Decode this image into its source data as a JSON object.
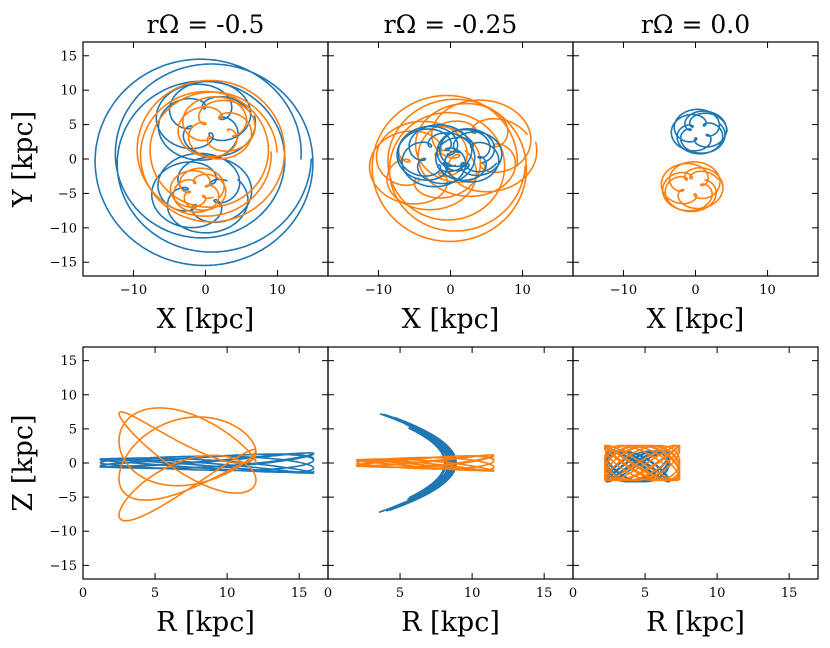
{
  "colors": {
    "series_a": "#1f77b4",
    "series_b": "#ff7f0e"
  },
  "chart_data": [
    {
      "type": "line",
      "panel": "xy",
      "title": "rΩ = -0.5",
      "xlabel": "X [kpc]",
      "ylabel": "Y [kpc]",
      "xlim": [
        -17,
        17
      ],
      "ylim": [
        -17,
        17
      ],
      "xticks": [
        "−10",
        "0",
        "10"
      ],
      "yticks": [
        "15",
        "10",
        "5",
        "0",
        "−5",
        "−10",
        "−15"
      ],
      "series": [
        {
          "color": "#1f77b4",
          "shape": "spiral",
          "cx": 0,
          "cy": 0,
          "r": [
            11,
            15.5
          ],
          "turns": 3
        },
        {
          "color": "#1f77b4",
          "shape": "loops",
          "cx": 0,
          "cy": 5.5,
          "r": 4.5,
          "n": 3
        },
        {
          "color": "#1f77b4",
          "shape": "loops",
          "cx": -0.5,
          "cy": -5,
          "r": 4.5,
          "n": 3
        },
        {
          "color": "#ff7f0e",
          "shape": "spiral",
          "cx": 0.5,
          "cy": 1,
          "r": [
            8,
            10.5
          ],
          "turns": 3
        },
        {
          "color": "#ff7f0e",
          "shape": "loops",
          "cx": 1.5,
          "cy": 4.5,
          "r": 3.5,
          "n": 3
        },
        {
          "color": "#ff7f0e",
          "shape": "loops",
          "cx": -1,
          "cy": -4.5,
          "r": 2.5,
          "n": 3
        }
      ]
    },
    {
      "type": "line",
      "panel": "xy",
      "title": "rΩ = -0.25",
      "xlabel": "X [kpc]",
      "ylabel": "",
      "xlim": [
        -17,
        17
      ],
      "ylim": [
        -17,
        17
      ],
      "xticks": [
        "−10",
        "0",
        "10"
      ],
      "yticks": [],
      "series": [
        {
          "color": "#ff7f0e",
          "shape": "spiral",
          "cx": 0,
          "cy": -1,
          "r": [
            7.5,
            11
          ],
          "turns": 3
        },
        {
          "color": "#ff7f0e",
          "shape": "loops",
          "cx": 3.5,
          "cy": 1.5,
          "r": 5.5,
          "n": 3
        },
        {
          "color": "#ff7f0e",
          "shape": "loops",
          "cx": -3.5,
          "cy": -1,
          "r": 5,
          "n": 3
        },
        {
          "color": "#1f77b4",
          "shape": "loops",
          "cx": -2,
          "cy": 0.5,
          "r": 3.5,
          "n": 4
        },
        {
          "color": "#1f77b4",
          "shape": "loops",
          "cx": 2.5,
          "cy": 0.5,
          "r": 3,
          "n": 4
        }
      ]
    },
    {
      "type": "line",
      "panel": "xy",
      "title": "rΩ = 0.0",
      "xlabel": "X [kpc]",
      "ylabel": "",
      "xlim": [
        -17,
        17
      ],
      "ylim": [
        -17,
        17
      ],
      "xticks": [
        "−10",
        "0",
        "10"
      ],
      "yticks": [],
      "series": [
        {
          "color": "#1f77b4",
          "shape": "loops",
          "cx": 0.5,
          "cy": 4,
          "r": 2.5,
          "n": 4
        },
        {
          "color": "#ff7f0e",
          "shape": "loops",
          "cx": -0.5,
          "cy": -4,
          "r": 2.8,
          "n": 4
        }
      ]
    },
    {
      "type": "line",
      "panel": "rz",
      "title": "",
      "xlabel": "R [kpc]",
      "ylabel": "Z [kpc]",
      "xlim": [
        0,
        17
      ],
      "ylim": [
        -17,
        17
      ],
      "xticks": [
        "0",
        "5",
        "10",
        "15"
      ],
      "yticks": [
        "15",
        "10",
        "5",
        "0",
        "−5",
        "−10",
        "−15"
      ],
      "series": [
        {
          "color": "#1f77b4",
          "shape": "bands",
          "r0": 1.2,
          "r1": 16,
          "zamp": 1.5
        },
        {
          "color": "#ff7f0e",
          "shape": "fan",
          "r0": 2.5,
          "r1": 12,
          "zamp": 8.5
        }
      ]
    },
    {
      "type": "line",
      "panel": "rz",
      "title": "",
      "xlabel": "R [kpc]",
      "ylabel": "",
      "xlim": [
        0,
        17
      ],
      "ylim": [
        -17,
        17
      ],
      "xticks": [
        "0",
        "5",
        "10",
        "15"
      ],
      "yticks": [],
      "series": [
        {
          "color": "#1f77b4",
          "shape": "arcs",
          "r0": 3.5,
          "r1": 8.5,
          "zamp": 7.2
        },
        {
          "color": "#ff7f0e",
          "shape": "bands",
          "r0": 2,
          "r1": 11.5,
          "zamp": 1.2
        }
      ]
    },
    {
      "type": "line",
      "panel": "rz",
      "title": "",
      "xlabel": "R [kpc]",
      "ylabel": "",
      "xlim": [
        0,
        17
      ],
      "ylim": [
        -17,
        17
      ],
      "xticks": [
        "0",
        "5",
        "10",
        "15"
      ],
      "yticks": [],
      "series": [
        {
          "color": "#1f77b4",
          "shape": "tangle",
          "cx": 4.5,
          "cz": -0.5,
          "rx": 2.2,
          "rz": 2.8
        },
        {
          "color": "#ff7f0e",
          "shape": "tangle",
          "cx": 4.8,
          "cz": 0,
          "rx": 2.6,
          "rz": 3.2
        }
      ]
    }
  ]
}
